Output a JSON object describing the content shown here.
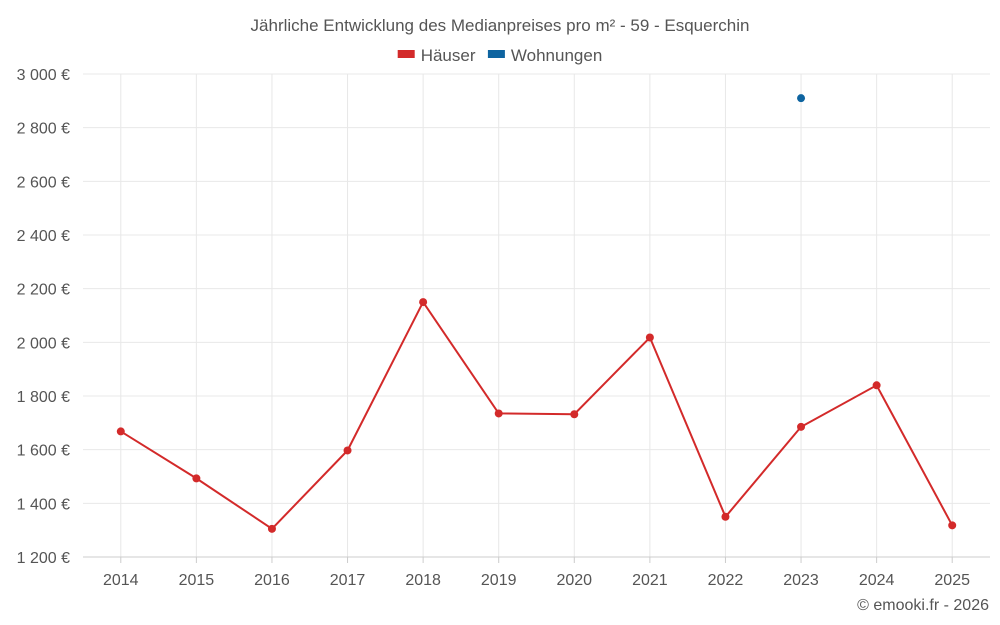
{
  "chart_data": {
    "type": "line",
    "title": "Jährliche Entwicklung des Medianpreises pro m² - 59 - Esquerchin",
    "categories": [
      "2014",
      "2015",
      "2016",
      "2017",
      "2018",
      "2019",
      "2020",
      "2021",
      "2022",
      "2023",
      "2024",
      "2025"
    ],
    "series": [
      {
        "name": "Häuser",
        "color": "#d32a2a",
        "values": [
          1668,
          1493,
          1305,
          1597,
          2150,
          1735,
          1732,
          2018,
          1350,
          1685,
          1840,
          1318
        ]
      },
      {
        "name": "Wohnungen",
        "color": "#0e64a0",
        "values": [
          null,
          null,
          null,
          null,
          null,
          null,
          null,
          null,
          null,
          2910,
          null,
          null
        ]
      }
    ],
    "ylim": [
      1200,
      3000
    ],
    "yticks": [
      1200,
      1400,
      1600,
      1800,
      2000,
      2200,
      2400,
      2600,
      2800,
      3000
    ],
    "ytick_labels": [
      "1 200 €",
      "1 400 €",
      "1 600 €",
      "1 800 €",
      "2 000 €",
      "2 200 €",
      "2 400 €",
      "2 600 €",
      "2 800 €",
      "3 000 €"
    ],
    "xlabel": "",
    "ylabel": "",
    "legend_position": "top-center",
    "grid": true
  },
  "credit": "© emooki.fr - 2026"
}
